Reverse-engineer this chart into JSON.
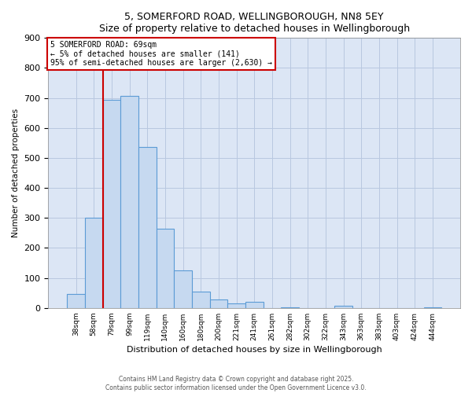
{
  "title1": "5, SOMERFORD ROAD, WELLINGBOROUGH, NN8 5EY",
  "title2": "Size of property relative to detached houses in Wellingborough",
  "xlabel": "Distribution of detached houses by size in Wellingborough",
  "ylabel": "Number of detached properties",
  "bar_labels": [
    "38sqm",
    "58sqm",
    "79sqm",
    "99sqm",
    "119sqm",
    "140sqm",
    "160sqm",
    "180sqm",
    "200sqm",
    "221sqm",
    "241sqm",
    "261sqm",
    "282sqm",
    "302sqm",
    "322sqm",
    "343sqm",
    "363sqm",
    "383sqm",
    "403sqm",
    "424sqm",
    "444sqm"
  ],
  "bar_values": [
    47,
    300,
    693,
    707,
    537,
    265,
    124,
    55,
    28,
    15,
    20,
    0,
    3,
    0,
    0,
    8,
    0,
    0,
    0,
    0,
    3
  ],
  "bar_color": "#c6d9f0",
  "bar_edge_color": "#5b9bd5",
  "vline_x": 1.5,
  "vline_color": "#cc0000",
  "annotation_text_line1": "5 SOMERFORD ROAD: 69sqm",
  "annotation_text_line2": "← 5% of detached houses are smaller (141)",
  "annotation_text_line3": "95% of semi-detached houses are larger (2,630) →",
  "annotation_box_color": "#ffffff",
  "annotation_box_edge": "#cc0000",
  "ylim": [
    0,
    900
  ],
  "yticks": [
    0,
    100,
    200,
    300,
    400,
    500,
    600,
    700,
    800,
    900
  ],
  "background_color": "#ffffff",
  "plot_bg_color": "#dce6f5",
  "grid_color": "#b8c8e0",
  "footer1": "Contains HM Land Registry data © Crown copyright and database right 2025.",
  "footer2": "Contains public sector information licensed under the Open Government Licence v3.0."
}
